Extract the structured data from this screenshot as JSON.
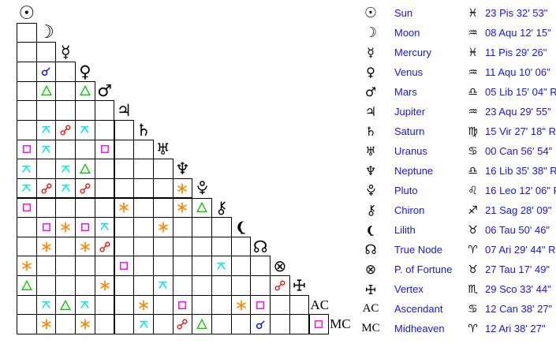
{
  "colors": {
    "background": "#ffffff",
    "grid_line": "#000000",
    "glyph": "#000000",
    "planet_text": "#1414ff",
    "aspect_conjunction": "#0000ff",
    "aspect_sextile": "#ff8800",
    "aspect_square": "#ff00ff",
    "aspect_trine": "#00cc00",
    "aspect_opposition": "#ff0000",
    "aspect_quincunx": "#00e5e5"
  },
  "chart_data": {
    "type": "aspectarian",
    "planets": [
      {
        "id": "sun",
        "name": "Sun",
        "sign": "Pisces",
        "position": "23 Pis 32' 53\""
      },
      {
        "id": "moon",
        "name": "Moon",
        "sign": "Aquarius",
        "position": "08 Aqu 12' 15\""
      },
      {
        "id": "mercury",
        "name": "Mercury",
        "sign": "Pisces",
        "position": "11 Pis 29' 26\""
      },
      {
        "id": "venus",
        "name": "Venus",
        "sign": "Aquarius",
        "position": "11 Aqu 10' 06\""
      },
      {
        "id": "mars",
        "name": "Mars",
        "sign": "Libra",
        "position": "05 Lib 15' 04\" R"
      },
      {
        "id": "jupiter",
        "name": "Jupiter",
        "sign": "Aquarius",
        "position": "23 Aqu 29' 55\""
      },
      {
        "id": "saturn",
        "name": "Saturn",
        "sign": "Virgo",
        "position": "15 Vir 27' 18\" R"
      },
      {
        "id": "uranus",
        "name": "Uranus",
        "sign": "Cancer",
        "position": "00 Can 56' 54\""
      },
      {
        "id": "neptune",
        "name": "Neptune",
        "sign": "Libra",
        "position": "16 Lib 35' 38\" R"
      },
      {
        "id": "pluto",
        "name": "Pluto",
        "sign": "Leo",
        "position": "16 Leo 12' 06\" R"
      },
      {
        "id": "chiron",
        "name": "Chiron",
        "sign": "Sagittarius",
        "position": "21 Sag 28' 09\""
      },
      {
        "id": "lilith",
        "name": "Lilith",
        "sign": "Taurus",
        "position": "06 Tau 50' 46\""
      },
      {
        "id": "truenode",
        "name": "True Node",
        "sign": "Aries",
        "position": "07 Ari 29' 44\" R"
      },
      {
        "id": "fortune",
        "name": "P. of Fortune",
        "sign": "Taurus",
        "position": "27 Tau 17' 49\""
      },
      {
        "id": "vertex",
        "name": "Vertex",
        "sign": "Scorpio",
        "position": "29 Sco 33' 44\""
      },
      {
        "id": "ascendant",
        "name": "Ascendant",
        "sign": "Cancer",
        "position": "12 Can 38' 27\"",
        "short": "AC"
      },
      {
        "id": "midheaven",
        "name": "Midheaven",
        "sign": "Aries",
        "position": "12 Ari 38' 27\"",
        "short": "MC"
      }
    ],
    "aspect_types": [
      "conjunction",
      "sextile",
      "square",
      "trine",
      "opposition",
      "quincunx"
    ],
    "grid_rows": [
      {
        "planet": "sun",
        "aspects": []
      },
      {
        "planet": "moon",
        "aspects": [
          ""
        ]
      },
      {
        "planet": "mercury",
        "aspects": [
          "",
          ""
        ]
      },
      {
        "planet": "venus",
        "aspects": [
          "",
          "conjunction",
          ""
        ]
      },
      {
        "planet": "mars",
        "aspects": [
          "",
          "trine",
          "",
          "trine"
        ]
      },
      {
        "planet": "jupiter",
        "aspects": [
          "",
          "",
          "",
          "",
          ""
        ]
      },
      {
        "planet": "saturn",
        "aspects": [
          "",
          "quincunx",
          "opposition",
          "quincunx",
          "",
          ""
        ]
      },
      {
        "planet": "uranus",
        "aspects": [
          "square",
          "quincunx",
          "",
          "",
          "square",
          "",
          ""
        ]
      },
      {
        "planet": "neptune",
        "aspects": [
          "quincunx",
          "",
          "quincunx",
          "trine",
          "",
          "",
          "",
          ""
        ]
      },
      {
        "planet": "pluto",
        "aspects": [
          "quincunx",
          "opposition",
          "quincunx",
          "opposition",
          "",
          "",
          "",
          "",
          "sextile"
        ]
      },
      {
        "planet": "chiron",
        "aspects": [
          "square",
          "",
          "",
          "",
          "",
          "sextile",
          "",
          "",
          "sextile",
          "trine"
        ]
      },
      {
        "planet": "lilith",
        "aspects": [
          "",
          "square",
          "sextile",
          "square",
          "quincunx",
          "",
          "",
          "sextile",
          "",
          "",
          ""
        ]
      },
      {
        "planet": "truenode",
        "aspects": [
          "",
          "sextile",
          "",
          "sextile",
          "opposition",
          "",
          "",
          "",
          "",
          "",
          "",
          ""
        ]
      },
      {
        "planet": "fortune",
        "aspects": [
          "sextile",
          "",
          "",
          "",
          "",
          "square",
          "",
          "",
          "",
          "",
          "quincunx",
          "",
          ""
        ]
      },
      {
        "planet": "vertex",
        "aspects": [
          "trine",
          "",
          "",
          "",
          "sextile",
          "",
          "",
          "quincunx",
          "",
          "",
          "",
          "",
          "",
          "opposition"
        ]
      },
      {
        "planet": "ascendant",
        "aspects": [
          "",
          "quincunx",
          "trine",
          "quincunx",
          "",
          "",
          "sextile",
          "",
          "square",
          "",
          "",
          "sextile",
          "square",
          "",
          ""
        ]
      },
      {
        "planet": "midheaven",
        "aspects": [
          "",
          "sextile",
          "",
          "sextile",
          "",
          "",
          "quincunx",
          "",
          "opposition",
          "trine",
          "",
          "",
          "conjunction",
          "",
          "",
          "square"
        ]
      }
    ]
  }
}
